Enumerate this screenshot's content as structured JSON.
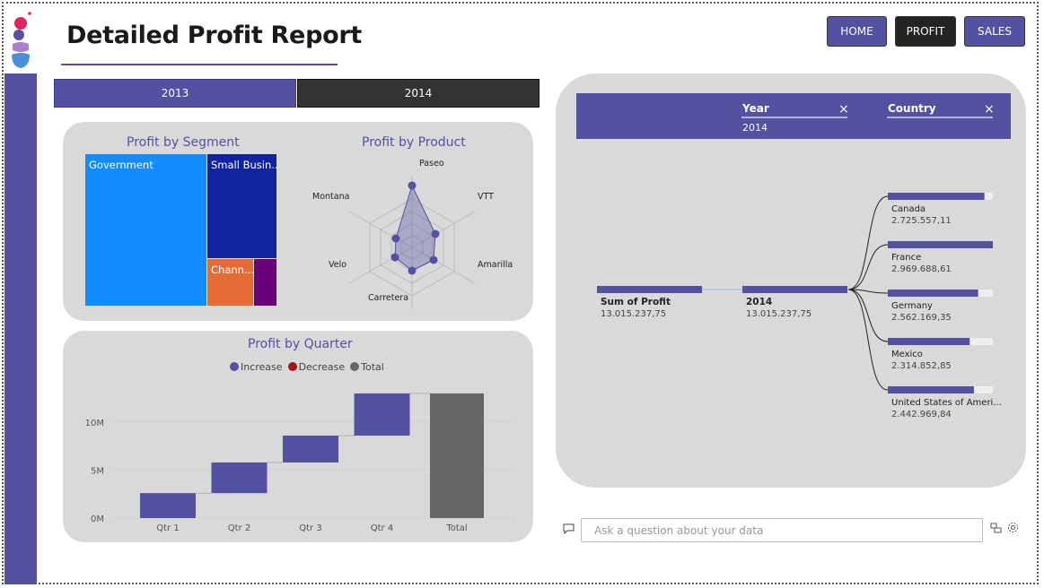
{
  "report": {
    "title": "Detailed Profit Report"
  },
  "nav": {
    "home": "HOME",
    "profit": "PROFIT",
    "sales": "SALES"
  },
  "year_tabs": [
    "2013",
    "2014"
  ],
  "colors": {
    "accent": "#5451a0",
    "dark": "#252423",
    "panel": "#d9d9d9",
    "treemap_blue": "#118dff",
    "treemap_navy": "#12239e",
    "treemap_orange": "#e66c37",
    "treemap_purple": "#6b007b",
    "total_gray": "#666666"
  },
  "segment_chart": {
    "title": "Profit by Segment",
    "cells": [
      {
        "label": "Government"
      },
      {
        "label": "Small Busin..."
      },
      {
        "label": "Chann..."
      },
      {
        "label": ""
      }
    ]
  },
  "product_chart": {
    "title": "Profit by Product",
    "axes": [
      "Paseo",
      "VTT",
      "Amarilla",
      "Carretera",
      "Velo",
      "Montana"
    ]
  },
  "chart_data": {
    "type": "bar",
    "title": "Profit by Quarter",
    "legend": [
      "Increase",
      "Decrease",
      "Total"
    ],
    "categories": [
      "Qtr 1",
      "Qtr 2",
      "Qtr 3",
      "Qtr 4",
      "Total"
    ],
    "values": [
      2.6,
      3.2,
      2.8,
      4.4,
      13.0
    ],
    "ytick_labels": [
      "0M",
      "5M",
      "10M"
    ],
    "yticks": [
      0,
      5,
      10
    ],
    "ylim": [
      0,
      14
    ],
    "xlabel": "",
    "ylabel": ""
  },
  "decomp": {
    "filters": [
      {
        "label": "Year",
        "value": "2014"
      },
      {
        "label": "Country",
        "value": ""
      }
    ],
    "root": {
      "label": "Sum of Profit",
      "value": "13.015.237,75"
    },
    "year": {
      "label": "2014",
      "value": "13.015.237,75"
    },
    "countries": [
      {
        "label": "Canada",
        "value": "2.725.557,11",
        "fraction": 0.92
      },
      {
        "label": "France",
        "value": "2.969.688,61",
        "fraction": 1.0
      },
      {
        "label": "Germany",
        "value": "2.562.169,35",
        "fraction": 0.86
      },
      {
        "label": "Mexico",
        "value": "2.314.852,85",
        "fraction": 0.78
      },
      {
        "label": "United States of Ameri...",
        "value": "2.442.969,84",
        "fraction": 0.82
      }
    ]
  },
  "qa": {
    "placeholder": "Ask a question about your data"
  }
}
